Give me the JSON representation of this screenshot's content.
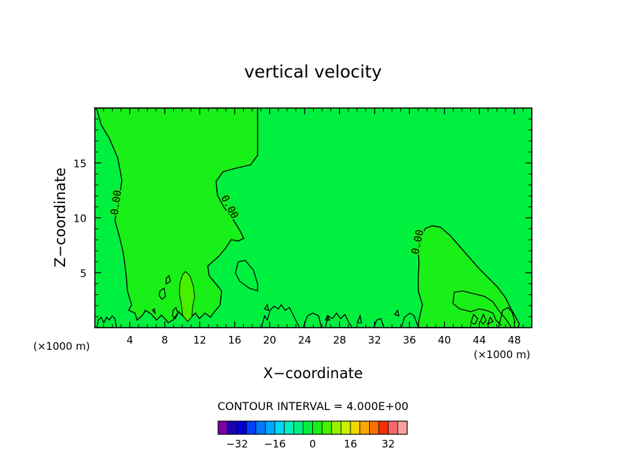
{
  "chart_data": {
    "type": "heatmap",
    "title": "vertical velocity",
    "xlabel": "X−coordinate",
    "ylabel": "Z−coordinate",
    "x_unit_left": "(×1000 m)",
    "x_unit_right": "(×1000 m)",
    "x_ticks": [
      4,
      8,
      12,
      16,
      20,
      24,
      28,
      32,
      36,
      40,
      44,
      48
    ],
    "y_ticks": [
      5,
      10,
      15
    ],
    "xlim": [
      0,
      50
    ],
    "ylim": [
      0,
      20
    ],
    "contour_label": "0.00",
    "contour_interval_text": "CONTOUR INTERVAL = 4.000E+00",
    "colorbar": {
      "levels": [
        -36,
        -32,
        -28,
        -24,
        -20,
        -16,
        -12,
        -8,
        -4,
        0,
        4,
        8,
        12,
        16,
        20,
        24,
        28,
        32,
        36
      ],
      "tick_labels": [
        "−32",
        "−16",
        "0",
        "16",
        "32"
      ],
      "tick_values": [
        -32,
        -16,
        0,
        16,
        32
      ],
      "colors": [
        "#7b00a8",
        "#1a00b0",
        "#0000d0",
        "#0040ff",
        "#0078ff",
        "#00a8ff",
        "#00d8f8",
        "#00f0c0",
        "#00f080",
        "#00f040",
        "#18f018",
        "#48f000",
        "#98f000",
        "#c8f000",
        "#f0d800",
        "#f8a800",
        "#f87000",
        "#f83000",
        "#f86868",
        "#f8a0a0"
      ]
    },
    "background_color": "#00f040",
    "regions": [
      {
        "name": "left-positive-region",
        "value": "0 to 4",
        "color": "#18f018"
      },
      {
        "name": "right-positive-region",
        "value": "0 to 4",
        "color": "#18f018"
      },
      {
        "name": "core-region",
        "value": "4 to 8",
        "color": "#48f000"
      }
    ]
  }
}
